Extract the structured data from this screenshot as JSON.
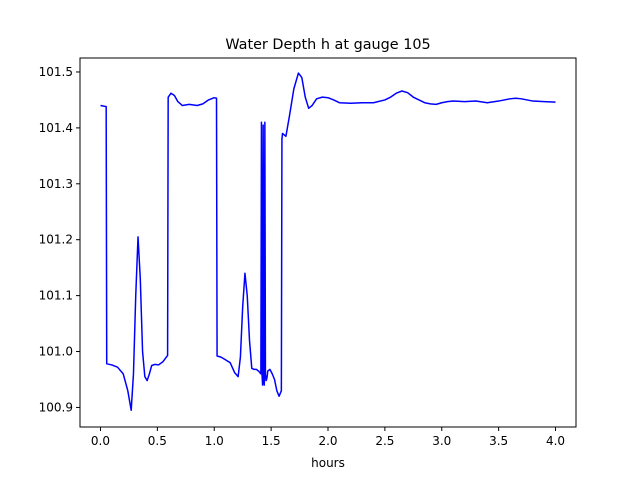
{
  "chart_data": {
    "type": "line",
    "title": "Water Depth h at gauge 105",
    "xlabel": "hours",
    "ylabel": "",
    "xlim": [
      -0.18,
      4.18
    ],
    "ylim": [
      100.865,
      101.525
    ],
    "xticks": [
      0.0,
      0.5,
      1.0,
      1.5,
      2.0,
      2.5,
      3.0,
      3.5,
      4.0
    ],
    "xtick_labels": [
      "0.0",
      "0.5",
      "1.0",
      "1.5",
      "2.0",
      "2.5",
      "3.0",
      "3.5",
      "4.0"
    ],
    "yticks": [
      100.9,
      101.0,
      101.1,
      101.2,
      101.3,
      101.4,
      101.5
    ],
    "ytick_labels": [
      "100.9",
      "101.0",
      "101.1",
      "101.2",
      "101.3",
      "101.4",
      "101.5"
    ],
    "grid": false,
    "series": [
      {
        "color": "#0000ff",
        "x": [
          0.0,
          0.05,
          0.055,
          0.1,
          0.15,
          0.2,
          0.24,
          0.27,
          0.29,
          0.31,
          0.33,
          0.35,
          0.37,
          0.39,
          0.41,
          0.43,
          0.45,
          0.48,
          0.51,
          0.55,
          0.59,
          0.595,
          0.62,
          0.65,
          0.68,
          0.72,
          0.78,
          0.85,
          0.9,
          0.95,
          1.0,
          1.02,
          1.025,
          1.06,
          1.1,
          1.14,
          1.18,
          1.21,
          1.23,
          1.25,
          1.27,
          1.29,
          1.31,
          1.33,
          1.35,
          1.37,
          1.39,
          1.41,
          1.415,
          1.42,
          1.425,
          1.43,
          1.435,
          1.44,
          1.445,
          1.45,
          1.455,
          1.46,
          1.465,
          1.47,
          1.49,
          1.51,
          1.53,
          1.55,
          1.57,
          1.59,
          1.595,
          1.6,
          1.63,
          1.66,
          1.7,
          1.74,
          1.77,
          1.8,
          1.83,
          1.86,
          1.9,
          1.95,
          2.0,
          2.05,
          2.1,
          2.2,
          2.3,
          2.4,
          2.5,
          2.55,
          2.6,
          2.65,
          2.7,
          2.75,
          2.8,
          2.85,
          2.9,
          2.95,
          3.0,
          3.05,
          3.1,
          3.2,
          3.3,
          3.4,
          3.5,
          3.6,
          3.65,
          3.7,
          3.75,
          3.8,
          3.9,
          4.0
        ],
        "y": [
          101.44,
          101.438,
          100.978,
          100.976,
          100.972,
          100.96,
          100.93,
          100.895,
          100.96,
          101.1,
          101.205,
          101.13,
          101.0,
          100.955,
          100.948,
          100.96,
          100.975,
          100.977,
          100.976,
          100.982,
          100.993,
          101.455,
          101.462,
          101.458,
          101.447,
          101.44,
          101.442,
          101.44,
          101.443,
          101.45,
          101.454,
          101.453,
          100.992,
          100.99,
          100.985,
          100.98,
          100.962,
          100.955,
          100.99,
          101.08,
          101.14,
          101.1,
          101.02,
          100.97,
          100.968,
          100.968,
          100.965,
          100.96,
          101.41,
          100.96,
          100.94,
          101.405,
          100.95,
          100.94,
          101.41,
          100.96,
          100.948,
          100.95,
          100.955,
          100.965,
          100.968,
          100.96,
          100.95,
          100.93,
          100.92,
          100.93,
          101.38,
          101.39,
          101.385,
          101.42,
          101.47,
          101.498,
          101.49,
          101.455,
          101.435,
          101.44,
          101.452,
          101.455,
          101.454,
          101.45,
          101.445,
          101.444,
          101.445,
          101.445,
          101.45,
          101.455,
          101.462,
          101.466,
          101.463,
          101.455,
          101.45,
          101.445,
          101.443,
          101.442,
          101.445,
          101.447,
          101.448,
          101.447,
          101.448,
          101.445,
          101.448,
          101.452,
          101.453,
          101.452,
          101.45,
          101.448,
          101.447,
          101.446
        ]
      }
    ]
  }
}
